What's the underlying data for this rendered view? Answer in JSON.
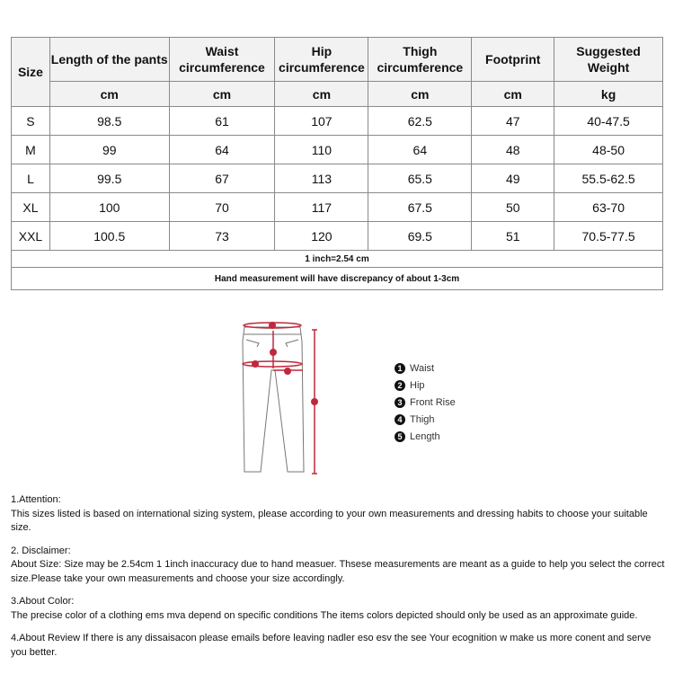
{
  "table": {
    "headers": [
      "Size",
      "Length of the pants",
      "Waist circumference",
      "Hip circumference",
      "Thigh circumference",
      "Footprint",
      "Suggested Weight"
    ],
    "units": [
      "cm",
      "cm",
      "cm",
      "cm",
      "cm",
      "kg"
    ],
    "rows": [
      [
        "S",
        "98.5",
        "61",
        "107",
        "62.5",
        "47",
        "40-47.5"
      ],
      [
        "M",
        "99",
        "64",
        "110",
        "64",
        "48",
        "48-50"
      ],
      [
        "L",
        "99.5",
        "67",
        "113",
        "65.5",
        "49",
        "55.5-62.5"
      ],
      [
        "XL",
        "100",
        "70",
        "117",
        "67.5",
        "50",
        "63-70"
      ],
      [
        "XXL",
        "100.5",
        "73",
        "120",
        "69.5",
        "51",
        "70.5-77.5"
      ]
    ],
    "conversion": "1 inch=2.54 cm",
    "note": "Hand measurement will have discrepancy of about 1-3cm"
  },
  "diagram": {
    "legend": [
      {
        "num": "1",
        "label": "Waist"
      },
      {
        "num": "2",
        "label": "Hip"
      },
      {
        "num": "3",
        "label": "Front Rise"
      },
      {
        "num": "4",
        "label": "Thigh"
      },
      {
        "num": "5",
        "label": "Length"
      }
    ],
    "accent_color": "#c0283c"
  },
  "notes": [
    {
      "title": "1.Attention:",
      "body": "This sizes listed is based on international sizing system, please according to your own measurements and dressing   habits to choose your suitable size."
    },
    {
      "title": "2. Disclaimer:",
      "body": "About Size: Size may be 2.54cm 1 1inch inaccuracy due to hand measuer. Thsese measurements are meant as a   guide to help you select the correct size.Please take your own measurements and choose your size accordingly."
    },
    {
      "title": "3.About Color:",
      "body": "The precise color of a clothing ems mva depend on specific conditions The items colors depicted should only be   used as an approximate guide."
    },
    {
      "title": "",
      "body": "4.About Review If there is any dissaisacon please emails before leaving nadler eso esv the see Your ecognition w   make us more conent and serve you better."
    }
  ]
}
